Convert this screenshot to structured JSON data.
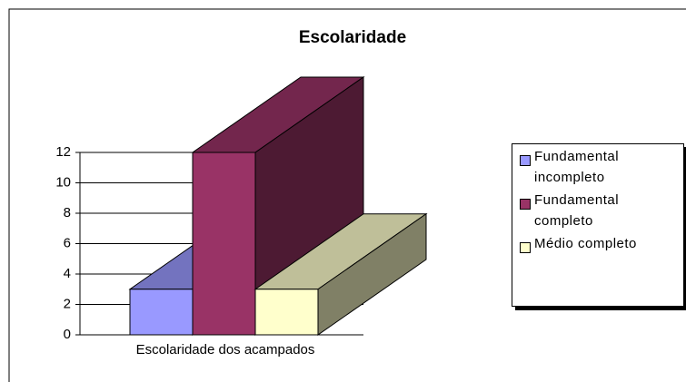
{
  "chart_data": {
    "type": "bar3d",
    "title": "Escolaridade",
    "categories": [
      "Escolaridade dos acampados"
    ],
    "series": [
      {
        "name": "Fundamental incompleto",
        "color": "#9999ff",
        "values": [
          3
        ]
      },
      {
        "name": "Fundamental completo",
        "color": "#993366",
        "values": [
          12
        ]
      },
      {
        "name": "Médio completo",
        "color": "#ffffcc",
        "values": [
          3
        ]
      }
    ],
    "ylim": [
      0,
      12
    ],
    "yticks": [
      0,
      2,
      4,
      6,
      8,
      10,
      12
    ],
    "grid": true,
    "legend": "right"
  }
}
